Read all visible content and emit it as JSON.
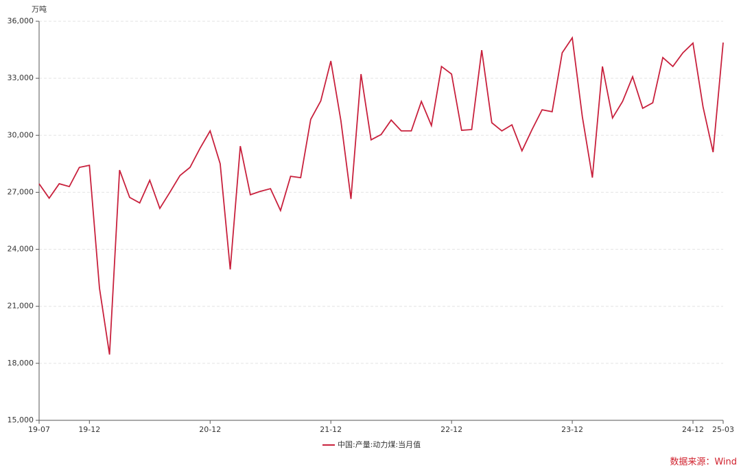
{
  "chart_data": {
    "type": "line",
    "y_axis_label": "万吨",
    "categories": [
      "19-07",
      null,
      null,
      null,
      null,
      "19-12",
      null,
      null,
      null,
      null,
      null,
      null,
      null,
      null,
      null,
      null,
      null,
      "20-12",
      null,
      null,
      null,
      null,
      null,
      null,
      null,
      null,
      null,
      null,
      null,
      "21-12",
      null,
      null,
      null,
      null,
      null,
      null,
      null,
      null,
      null,
      null,
      null,
      "22-12",
      null,
      null,
      null,
      null,
      null,
      null,
      null,
      null,
      null,
      null,
      null,
      "23-12",
      null,
      null,
      null,
      null,
      null,
      null,
      null,
      null,
      null,
      null,
      null,
      "24-12",
      null,
      null,
      "25-03"
    ],
    "series": [
      {
        "name": "中国:产量:动力煤:当月值",
        "color": "#c8203c",
        "values": [
          27450,
          26690,
          27450,
          27300,
          28310,
          28420,
          21960,
          18460,
          28170,
          26730,
          26440,
          27630,
          26150,
          27000,
          27880,
          28310,
          29320,
          30230,
          28500,
          22940,
          29430,
          26870,
          27050,
          27190,
          26040,
          27840,
          27770,
          30840,
          31810,
          33910,
          30770,
          26650,
          33220,
          29760,
          30040,
          30800,
          30230,
          30230,
          31780,
          30510,
          33620,
          33220,
          30260,
          30300,
          34480,
          30660,
          30230,
          30550,
          29180,
          30300,
          31340,
          31240,
          34340,
          35130,
          30980,
          27770,
          33620,
          30910,
          31780,
          33080,
          31420,
          31710,
          34090,
          33620,
          34340,
          34850,
          31490,
          29110,
          34880
        ]
      }
    ],
    "ylim": [
      15000,
      36000
    ],
    "yticks": [
      {
        "value": 15000,
        "label": "15,000"
      },
      {
        "value": 18000,
        "label": "18,000"
      },
      {
        "value": 21000,
        "label": "21,000"
      },
      {
        "value": 24000,
        "label": "24,000"
      },
      {
        "value": 27000,
        "label": "27,000"
      },
      {
        "value": 30000,
        "label": "30,000"
      },
      {
        "value": 33000,
        "label": "33,000"
      },
      {
        "value": 36000,
        "label": "36,000"
      }
    ],
    "grid": true,
    "legend": "bottom",
    "source": "数据来源：Wind"
  }
}
